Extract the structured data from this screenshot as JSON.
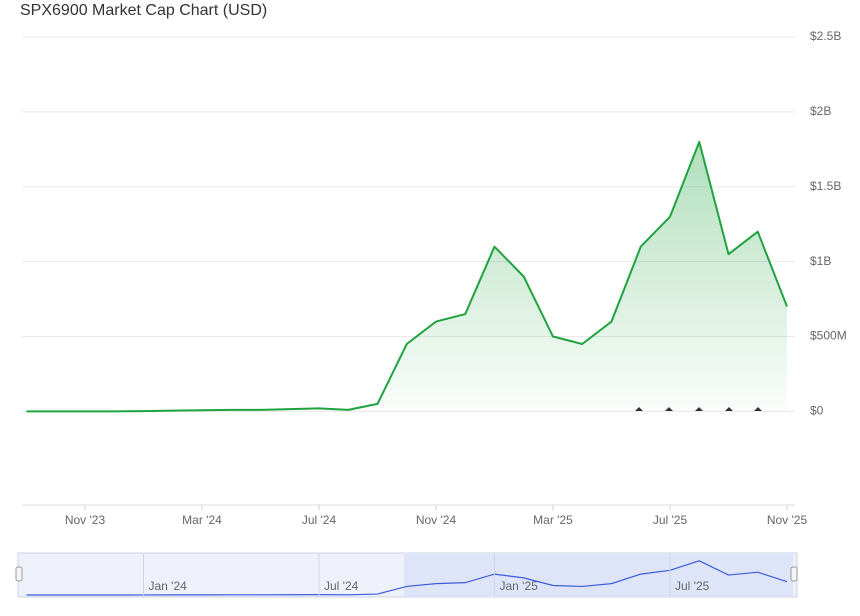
{
  "chart_data": {
    "type": "area",
    "title": "SPX6900 Market Cap Chart (USD)",
    "x": [
      "2023-09",
      "2023-10",
      "2023-11",
      "2023-12",
      "2024-01",
      "2024-02",
      "2024-03",
      "2024-04",
      "2024-05",
      "2024-06",
      "2024-07",
      "2024-08",
      "2024-09",
      "2024-10",
      "2024-11",
      "2024-12",
      "2025-01",
      "2025-02",
      "2025-03",
      "2025-04",
      "2025-05",
      "2025-06",
      "2025-07",
      "2025-08",
      "2025-09",
      "2025-10",
      "2025-11"
    ],
    "series": [
      {
        "name": "Market Cap",
        "color": "#1fa33f",
        "values": [
          0,
          0,
          0,
          0,
          2000000,
          5000000,
          8000000,
          10000000,
          10000000,
          15000000,
          20000000,
          10000000,
          50000000,
          450000000,
          600000000,
          650000000,
          1100000000,
          900000000,
          500000000,
          450000000,
          600000000,
          1100000000,
          1300000000,
          1800000000,
          1050000000,
          1200000000,
          700000000
        ]
      }
    ],
    "ylim": [
      -625000000,
      2500000000
    ],
    "yticks": [
      {
        "value": 0,
        "label": "$0"
      },
      {
        "value": 500000000,
        "label": "$500M"
      },
      {
        "value": 1000000000,
        "label": "$1B"
      },
      {
        "value": 1500000000,
        "label": "$1.5B"
      },
      {
        "value": 2000000000,
        "label": "$2B"
      },
      {
        "value": 2500000000,
        "label": "$2.5B"
      }
    ],
    "xticks": [
      {
        "value": "2023-11",
        "label": "Nov '23"
      },
      {
        "value": "2024-03",
        "label": "Mar '24"
      },
      {
        "value": "2024-07",
        "label": "Jul '24"
      },
      {
        "value": "2024-11",
        "label": "Nov '24"
      },
      {
        "value": "2025-03",
        "label": "Mar '25"
      },
      {
        "value": "2025-07",
        "label": "Jul '25"
      },
      {
        "value": "2025-11",
        "label": "Nov '25"
      }
    ],
    "grid": true,
    "navigator": {
      "color": "#3b5bdb",
      "xticks": [
        {
          "value": "2024-01",
          "label": "Jan '24"
        },
        {
          "value": "2024-07",
          "label": "Jul '24"
        },
        {
          "value": "2025-01",
          "label": "Jan '25"
        },
        {
          "value": "2025-07",
          "label": "Jul '25"
        }
      ]
    }
  }
}
